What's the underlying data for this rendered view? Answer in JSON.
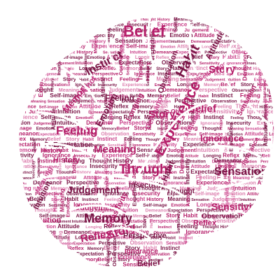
{
  "colors": {
    "background": "#ffffff",
    "primary": "#b51f6a",
    "dark": "#7a1446",
    "mid": "#c9418a",
    "light": "#dc7fae",
    "fissure": "#ffffff"
  },
  "large_words": [
    "Belief",
    "Habit",
    "Experience",
    "Instinct",
    "Feeling",
    "Thought",
    "Memory",
    "Story",
    "Reflex",
    "Sensation",
    "Meaning",
    "Judgement",
    "Ignorance",
    "Sensitivity",
    "Emotion",
    "Intuition",
    "History",
    "Observation",
    "Perspective",
    "Attitude",
    "Demeanor",
    "Expectation",
    "Longing",
    "Insecurity",
    "Self-image"
  ],
  "small_words": [
    "Emotion",
    "Attitude",
    "Longing",
    "Reflex",
    "Memory",
    "Belief",
    "Story",
    "Habit",
    "Instinct",
    "Feeling",
    "Thought",
    "History",
    "Meaning",
    "Sensation",
    "Judgement",
    "Intuition",
    "Demeanor",
    "Expectation",
    "Perspective",
    "Observation",
    "Sensitivity",
    "Ignorance",
    "Insecurity",
    "Experience",
    "Self-image"
  ]
}
